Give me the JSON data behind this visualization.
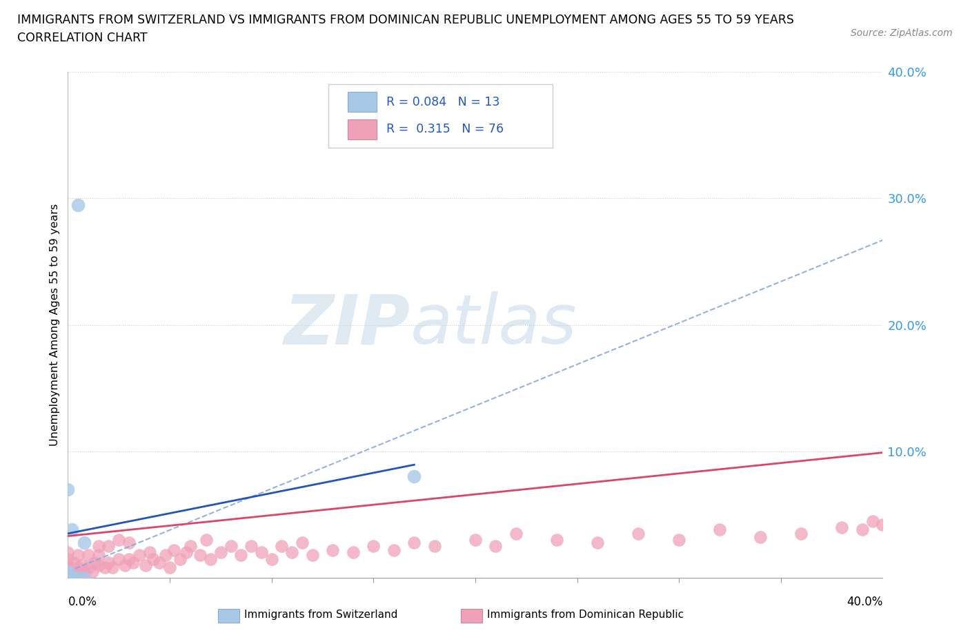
{
  "title_line1": "IMMIGRANTS FROM SWITZERLAND VS IMMIGRANTS FROM DOMINICAN REPUBLIC UNEMPLOYMENT AMONG AGES 55 TO 59 YEARS",
  "title_line2": "CORRELATION CHART",
  "source": "Source: ZipAtlas.com",
  "ylabel": "Unemployment Among Ages 55 to 59 years",
  "xlim": [
    0.0,
    0.4
  ],
  "ylim": [
    0.0,
    0.4
  ],
  "ytick_labels": [
    "10.0%",
    "20.0%",
    "30.0%",
    "40.0%"
  ],
  "ytick_vals": [
    0.1,
    0.2,
    0.3,
    0.4
  ],
  "xtick_minor": [
    0.05,
    0.1,
    0.15,
    0.2,
    0.25,
    0.3,
    0.35
  ],
  "switzerland_color": "#a8c8e8",
  "dominican_color": "#f0a0b8",
  "trend_swiss_color": "#2255bb",
  "trend_dom_color": "#dd4466",
  "trend_dashed_color": "#88aadd",
  "watermark_color": "#c8ddf0",
  "legend_text_color": "#2255cc",
  "legend_r1": "R = 0.084   N = 13",
  "legend_r2": "R =  0.315   N = 76",
  "swiss_x": [
    0.0,
    0.0,
    0.0,
    0.0,
    0.0,
    0.0,
    0.002,
    0.002,
    0.005,
    0.005,
    0.008,
    0.008,
    0.17
  ],
  "swiss_y": [
    0.0,
    0.0,
    0.0,
    0.003,
    0.005,
    0.07,
    0.0,
    0.038,
    0.0,
    0.295,
    0.0,
    0.028,
    0.08
  ],
  "dom_x": [
    0.0,
    0.0,
    0.0,
    0.0,
    0.0,
    0.0,
    0.0,
    0.0,
    0.002,
    0.003,
    0.005,
    0.005,
    0.005,
    0.007,
    0.008,
    0.01,
    0.01,
    0.012,
    0.013,
    0.015,
    0.015,
    0.015,
    0.018,
    0.02,
    0.02,
    0.022,
    0.025,
    0.025,
    0.028,
    0.03,
    0.03,
    0.032,
    0.035,
    0.038,
    0.04,
    0.042,
    0.045,
    0.048,
    0.05,
    0.052,
    0.055,
    0.058,
    0.06,
    0.065,
    0.068,
    0.07,
    0.075,
    0.08,
    0.085,
    0.09,
    0.095,
    0.1,
    0.105,
    0.11,
    0.115,
    0.12,
    0.13,
    0.14,
    0.15,
    0.16,
    0.17,
    0.18,
    0.2,
    0.21,
    0.22,
    0.24,
    0.26,
    0.28,
    0.3,
    0.32,
    0.34,
    0.36,
    0.38,
    0.39,
    0.395,
    0.4
  ],
  "dom_y": [
    0.0,
    0.0,
    0.003,
    0.005,
    0.008,
    0.01,
    0.015,
    0.02,
    0.005,
    0.012,
    0.003,
    0.008,
    0.018,
    0.01,
    0.005,
    0.008,
    0.018,
    0.005,
    0.012,
    0.01,
    0.018,
    0.025,
    0.008,
    0.012,
    0.025,
    0.008,
    0.015,
    0.03,
    0.01,
    0.015,
    0.028,
    0.012,
    0.018,
    0.01,
    0.02,
    0.015,
    0.012,
    0.018,
    0.008,
    0.022,
    0.015,
    0.02,
    0.025,
    0.018,
    0.03,
    0.015,
    0.02,
    0.025,
    0.018,
    0.025,
    0.02,
    0.015,
    0.025,
    0.02,
    0.028,
    0.018,
    0.022,
    0.02,
    0.025,
    0.022,
    0.028,
    0.025,
    0.03,
    0.025,
    0.035,
    0.03,
    0.028,
    0.035,
    0.03,
    0.038,
    0.032,
    0.035,
    0.04,
    0.038,
    0.045,
    0.042
  ]
}
